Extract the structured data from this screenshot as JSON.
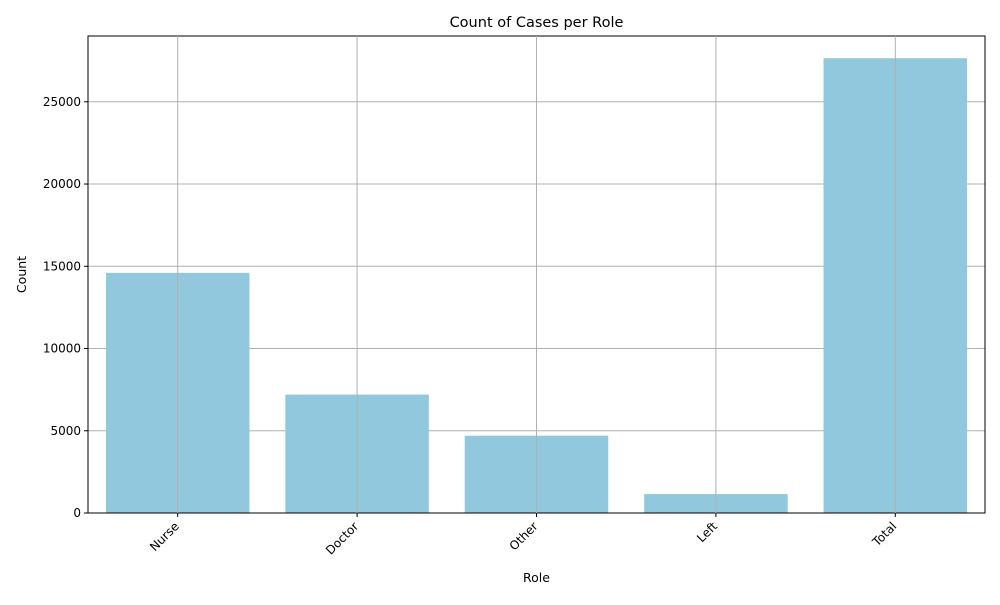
{
  "chart_data": {
    "type": "bar",
    "title": "Count of Cases per Role",
    "xlabel": "Role",
    "ylabel": "Count",
    "categories": [
      "Nurse",
      "Doctor",
      "Other",
      "Left",
      "Total"
    ],
    "values": [
      14600,
      7200,
      4700,
      1150,
      27650
    ],
    "ylim": [
      0,
      29000
    ],
    "yticks": [
      0,
      5000,
      10000,
      15000,
      20000,
      25000
    ],
    "ytick_labels": [
      "0",
      "5000",
      "10000",
      "15000",
      "20000",
      "25000"
    ],
    "bar_color": "#92c8de",
    "grid": true,
    "xtick_rotation_deg": 45
  }
}
